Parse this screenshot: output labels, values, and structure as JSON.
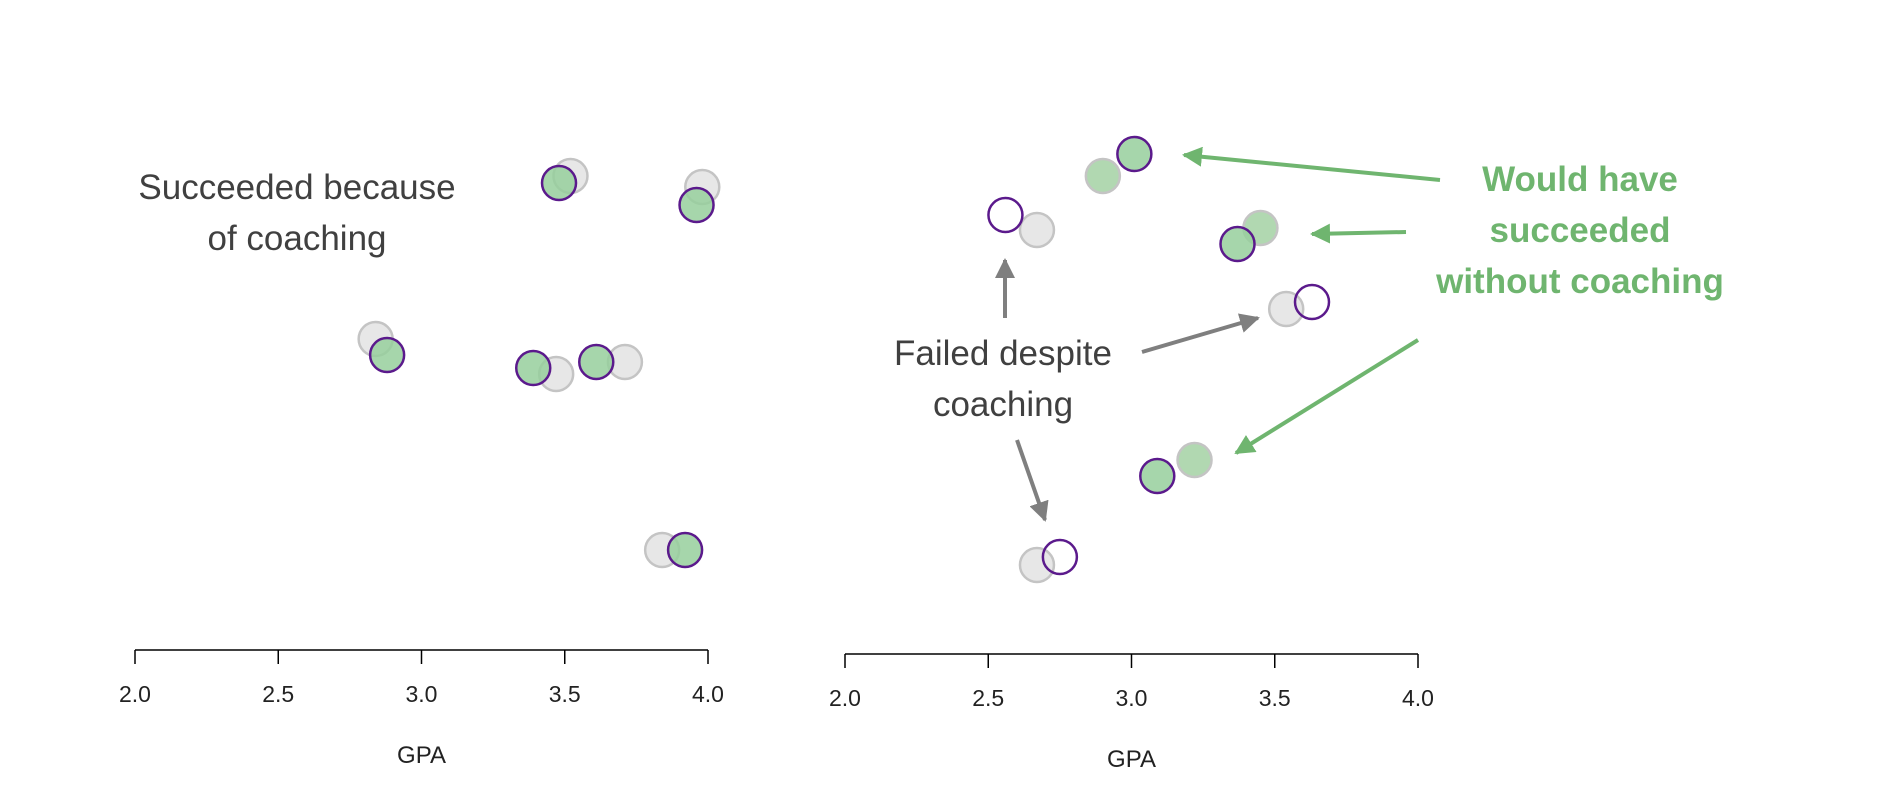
{
  "colors": {
    "treated_fill": "#97cf9c",
    "treated_stroke": "#5b1a8c",
    "counterfactual_fill": "#e4e4e4",
    "counterfactual_stroke": "#c4c4c4",
    "counterfactual_success_fill": "#a8d4a8",
    "annotation_dark": "#404040",
    "annotation_green": "#6fb56f",
    "arrow_gray": "#7f7f7f",
    "axis": "#000000"
  },
  "chart_data": [
    {
      "type": "scatter",
      "xlabel": "GPA",
      "xlim": [
        2.0,
        4.0
      ],
      "xticks": [
        "2.0",
        "2.5",
        "3.0",
        "3.5",
        "4.0"
      ],
      "grid": false,
      "annotations": [
        {
          "lines": [
            "Succeeded because",
            "of coaching"
          ]
        }
      ],
      "pairs": [
        {
          "observed": {
            "x": 3.48,
            "success": true
          },
          "counterfactual": {
            "x": 3.52,
            "success": false
          }
        },
        {
          "observed": {
            "x": 3.96,
            "success": true
          },
          "counterfactual": {
            "x": 3.98,
            "success": false
          }
        },
        {
          "observed": {
            "x": 2.88,
            "success": true
          },
          "counterfactual": {
            "x": 2.84,
            "success": false
          }
        },
        {
          "observed": {
            "x": 3.39,
            "success": true
          },
          "counterfactual": {
            "x": 3.47,
            "success": false
          }
        },
        {
          "observed": {
            "x": 3.61,
            "success": true
          },
          "counterfactual": {
            "x": 3.71,
            "success": false
          }
        },
        {
          "observed": {
            "x": 3.92,
            "success": true
          },
          "counterfactual": {
            "x": 3.84,
            "success": false
          }
        }
      ]
    },
    {
      "type": "scatter",
      "xlabel": "GPA",
      "xlim": [
        2.0,
        4.0
      ],
      "xticks": [
        "2.0",
        "2.5",
        "3.0",
        "3.5",
        "4.0"
      ],
      "grid": false,
      "annotations": [
        {
          "lines": [
            "Failed despite",
            "coaching"
          ]
        },
        {
          "lines": [
            "Would have",
            "succeeded",
            "without coaching"
          ]
        }
      ],
      "pairs": [
        {
          "observed": {
            "x": 3.01,
            "success": true
          },
          "counterfactual": {
            "x": 2.9,
            "success": true
          }
        },
        {
          "observed": {
            "x": 2.56,
            "success": false
          },
          "counterfactual": {
            "x": 2.67,
            "success": false
          }
        },
        {
          "observed": {
            "x": 3.37,
            "success": true
          },
          "counterfactual": {
            "x": 3.45,
            "success": true
          }
        },
        {
          "observed": {
            "x": 3.63,
            "success": false
          },
          "counterfactual": {
            "x": 3.54,
            "success": false
          }
        },
        {
          "observed": {
            "x": 3.09,
            "success": true
          },
          "counterfactual": {
            "x": 3.22,
            "success": true
          }
        },
        {
          "observed": {
            "x": 2.75,
            "success": false
          },
          "counterfactual": {
            "x": 2.67,
            "success": false
          }
        }
      ]
    }
  ]
}
